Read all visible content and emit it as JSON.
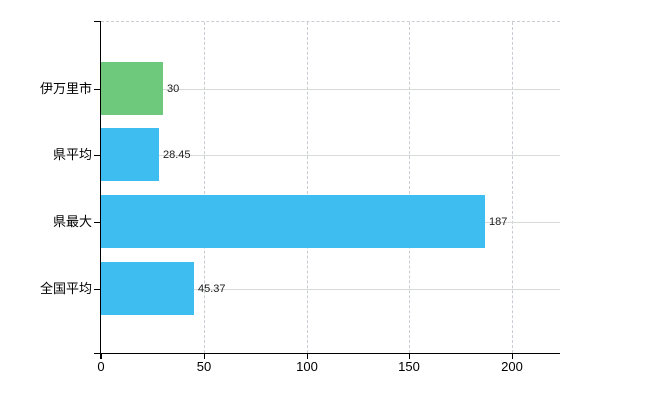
{
  "chart_data": {
    "type": "bar",
    "orientation": "horizontal",
    "title": "",
    "xlabel": "",
    "ylabel": "",
    "categories": [
      "伊万里市",
      "県平均",
      "県最大",
      "全国平均"
    ],
    "values": [
      30,
      28.45,
      187,
      45.37
    ],
    "value_labels": [
      "30",
      "28.45",
      "187",
      "45.37"
    ],
    "bar_colors": [
      "#6ec97d",
      "#3ebdf0",
      "#3ebdf0",
      "#3ebdf0"
    ],
    "x_tick_labels": [
      "0",
      "50",
      "100",
      "150",
      "200"
    ],
    "x_tick_values": [
      0,
      50,
      100,
      150,
      200
    ],
    "xlim": [
      0,
      223.5
    ],
    "grid": true,
    "legend": false
  },
  "colors": {
    "highlight_bar": "#6ec97d",
    "default_bar": "#3ebdf0",
    "grid_horizontal": "#d6dbd6",
    "grid_vertical": "#c9ccd2",
    "axis": "#000000",
    "value_label": "#1c1c1c",
    "background": "#ffffff"
  }
}
